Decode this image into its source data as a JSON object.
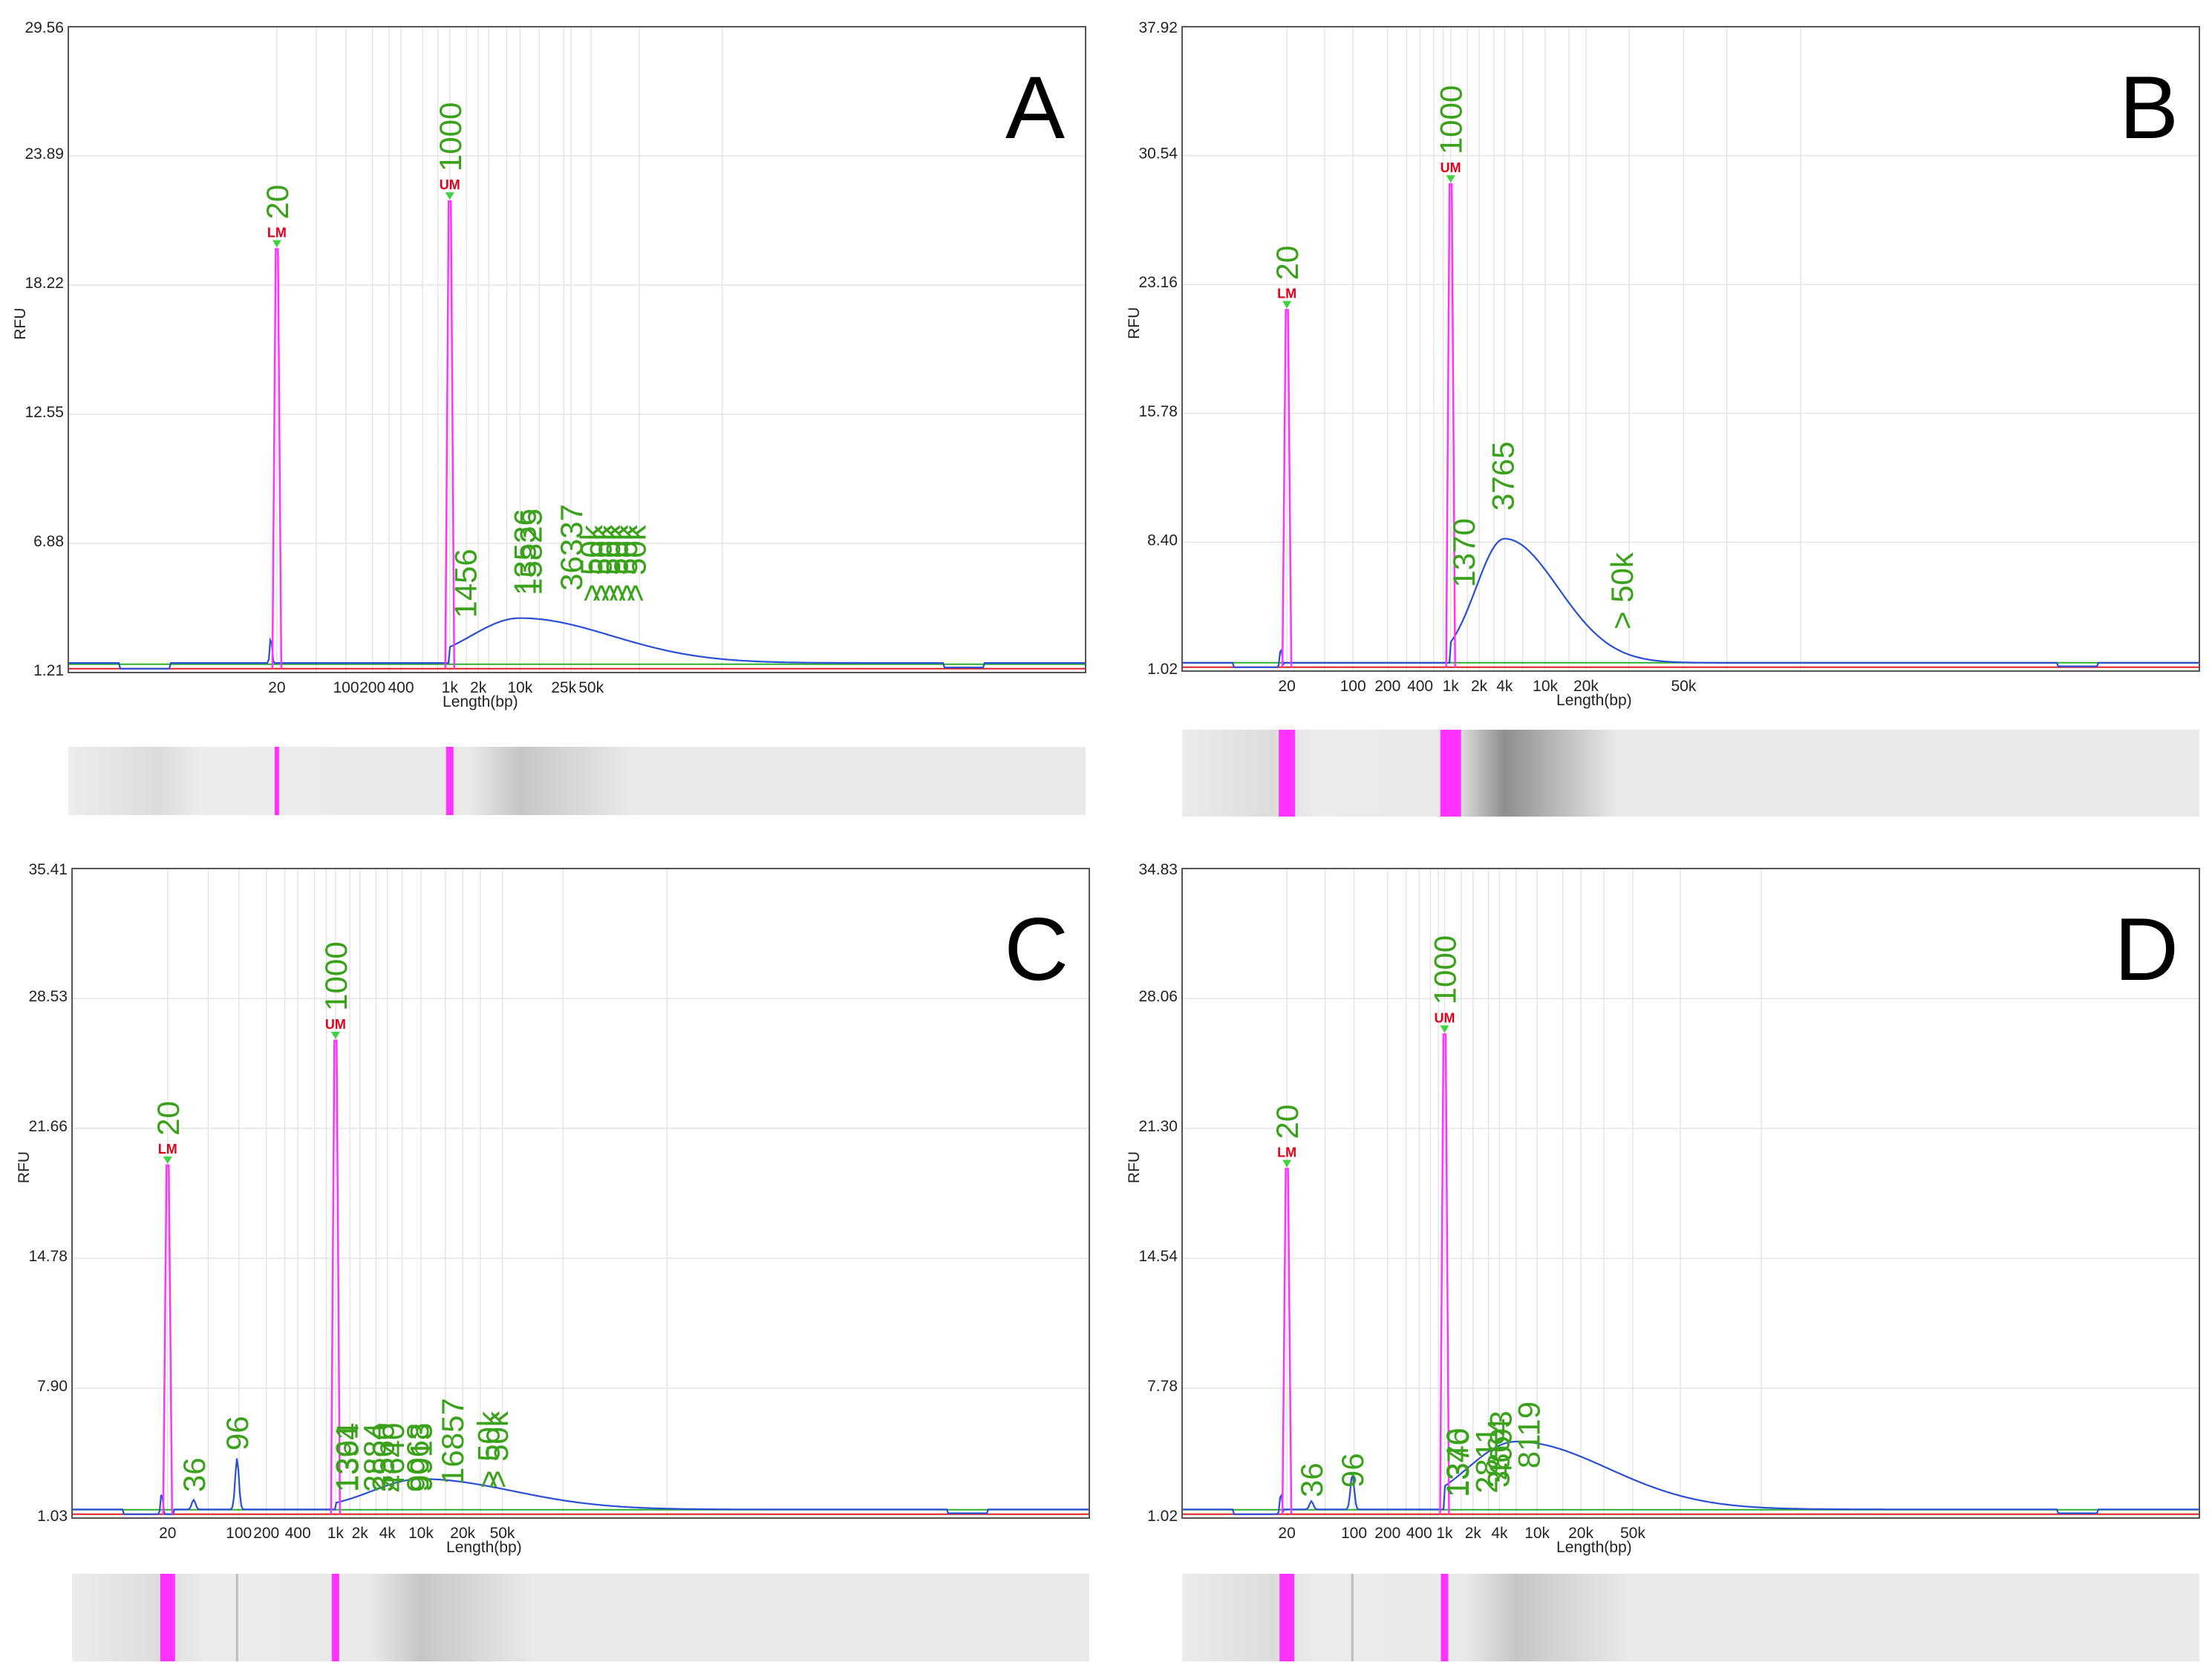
{
  "figure": {
    "x_axis_label": "Length(bp)",
    "y_axis_label": "RFU",
    "colors": {
      "marker_peak": "#ff33ff",
      "sample_trace": "#2a4fd6",
      "peak_label": "#3aa11a",
      "marker_tag": "#e0001b",
      "baseline_green": "#2bb02b",
      "baseline_red": "#e02020",
      "gridline": "#e4e4e4",
      "gel_background": "#e9e9e9"
    }
  },
  "chart_data": [
    {
      "panel": "A",
      "type": "line",
      "yticks": [
        "1.21",
        "6.88",
        "12.55",
        "18.22",
        "23.89",
        "29.56"
      ],
      "ylim": [
        1.21,
        29.56
      ],
      "xticks": [
        "20",
        "100",
        "200",
        "400",
        "1k",
        "2k",
        "10k",
        "25k",
        "50k"
      ],
      "lower_marker": {
        "size": "20",
        "tag": "LM",
        "rfu": 19.8
      },
      "upper_marker": {
        "size": "1000",
        "tag": "UM",
        "rfu": 21.9
      },
      "smear": {
        "center": "10k",
        "rfu": 3.6
      },
      "peak_labels": [
        "1456",
        "13536",
        "15825",
        "36337",
        "> 50k",
        "> 50k",
        "> 50k",
        "> 50k",
        "> 50k",
        "> 50k"
      ]
    },
    {
      "panel": "B",
      "type": "line",
      "yticks": [
        "1.02",
        "8.40",
        "15.78",
        "23.16",
        "30.54",
        "37.92"
      ],
      "ylim": [
        1.02,
        37.92
      ],
      "xticks": [
        "20",
        "100",
        "200",
        "400",
        "1k",
        "2k",
        "4k",
        "10k",
        "20k",
        "50k"
      ],
      "lower_marker": {
        "size": "20",
        "tag": "LM",
        "rfu": 21.7
      },
      "upper_marker": {
        "size": "1000",
        "tag": "UM",
        "rfu": 28.9
      },
      "smear": {
        "center": "4k",
        "rfu": 8.6
      },
      "peak_labels": [
        "1370",
        "3765",
        "> 50k"
      ]
    },
    {
      "panel": "C",
      "type": "line",
      "yticks": [
        "1.03",
        "7.90",
        "14.78",
        "21.66",
        "28.53",
        "35.41"
      ],
      "ylim": [
        1.03,
        35.41
      ],
      "xticks": [
        "20",
        "100",
        "200",
        "400",
        "1k",
        "2k",
        "4k",
        "10k",
        "20k",
        "50k"
      ],
      "lower_marker": {
        "size": "20",
        "tag": "LM",
        "rfu": 19.7
      },
      "upper_marker": {
        "size": "1000",
        "tag": "UM",
        "rfu": 26.3
      },
      "small_peaks": [
        {
          "size": "36",
          "rfu": 2.0
        },
        {
          "size": "96",
          "rfu": 4.2
        }
      ],
      "smear": {
        "center": "10k",
        "rfu": 3.1
      },
      "peak_labels": [
        "36",
        "96",
        "1361",
        "1394",
        "2884",
        "3560",
        "4640",
        "9068",
        "9913",
        "16857",
        "> 50k",
        "> 50k"
      ]
    },
    {
      "panel": "D",
      "type": "line",
      "yticks": [
        "1.02",
        "7.78",
        "14.54",
        "21.30",
        "28.06",
        "34.83"
      ],
      "ylim": [
        1.02,
        34.83
      ],
      "xticks": [
        "20",
        "100",
        "200",
        "400",
        "1k",
        "2k",
        "4k",
        "10k",
        "20k",
        "50k"
      ],
      "lower_marker": {
        "size": "20",
        "tag": "LM",
        "rfu": 19.2
      },
      "upper_marker": {
        "size": "1000",
        "tag": "UM",
        "rfu": 26.2
      },
      "small_peaks": [
        {
          "size": "36",
          "rfu": 1.9
        },
        {
          "size": "96",
          "rfu": 3.3
        }
      ],
      "smear": {
        "center": "6k",
        "rfu": 5.0
      },
      "peak_labels": [
        "36",
        "96",
        "1346",
        "1370",
        "2811",
        "3864",
        "4093",
        "8119"
      ]
    }
  ]
}
